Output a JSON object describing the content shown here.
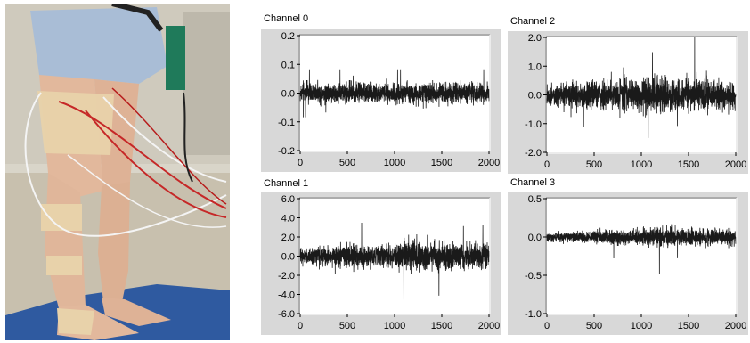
{
  "photo": {
    "subject": "legs instrumented with EMG electrodes and cables, standing on a blue mat",
    "colors": {
      "background": "#d8d4c8",
      "mat": "#2f5aa0",
      "skin": "#e2b89c",
      "bandage": "#e6cfa8",
      "shorts": "#a9bdd6"
    }
  },
  "chart_data": [
    {
      "type": "line",
      "title": "Channel 0",
      "xlim": [
        0,
        2000
      ],
      "ylim": [
        -0.2,
        0.2
      ],
      "xticks": [
        0,
        500,
        1000,
        1500,
        2000
      ],
      "yticks": [
        -0.2,
        -0.1,
        0.0,
        0.1,
        0.2
      ],
      "xtick_labels": [
        "0",
        "500",
        "1000",
        "1500",
        "2000"
      ],
      "ytick_labels": [
        "-0.2",
        "-0.1",
        "0.0",
        "0.1",
        "0.2"
      ],
      "grid": false,
      "signal": {
        "samples": 2000,
        "amplitude": 0.025,
        "envelope": [
          [
            0,
            0.9
          ],
          [
            500,
            1.0
          ],
          [
            1000,
            1.0
          ],
          [
            1500,
            1.05
          ],
          [
            2000,
            1.0
          ]
        ],
        "peak": 0.08
      }
    },
    {
      "type": "line",
      "title": "Channel 2",
      "xlim": [
        0,
        2000
      ],
      "ylim": [
        -2.0,
        2.0
      ],
      "xticks": [
        0,
        500,
        1000,
        1500,
        2000
      ],
      "yticks": [
        -2.0,
        -1.0,
        0.0,
        1.0,
        2.0
      ],
      "xtick_labels": [
        "0",
        "500",
        "1000",
        "1500",
        "2000"
      ],
      "ytick_labels": [
        "-2.0",
        "-1.0",
        "0.0",
        "1.0",
        "2.0"
      ],
      "grid": false,
      "signal": {
        "samples": 2000,
        "amplitude": 0.35,
        "envelope": [
          [
            0,
            0.7
          ],
          [
            500,
            0.9
          ],
          [
            1000,
            1.2
          ],
          [
            1200,
            1.3
          ],
          [
            1500,
            1.1
          ],
          [
            2000,
            1.0
          ]
        ],
        "peak": 2.0
      }
    },
    {
      "type": "line",
      "title": "Channel 1",
      "xlim": [
        0,
        2000
      ],
      "ylim": [
        -6.0,
        6.0
      ],
      "xticks": [
        0,
        500,
        1000,
        1500,
        2000
      ],
      "yticks": [
        -6.0,
        -4.0,
        -2.0,
        0.0,
        2.0,
        4.0,
        6.0
      ],
      "xtick_labels": [
        "0",
        "500",
        "1000",
        "1500",
        "2000"
      ],
      "ytick_labels": [
        "-6.0",
        "-4.0",
        "-2.0",
        "0.0",
        "2.0",
        "4.0",
        "6.0"
      ],
      "grid": false,
      "signal": {
        "samples": 2000,
        "amplitude": 0.9,
        "envelope": [
          [
            0,
            0.6
          ],
          [
            400,
            0.9
          ],
          [
            800,
            0.9
          ],
          [
            1200,
            1.3
          ],
          [
            1600,
            1.0
          ],
          [
            2000,
            1.0
          ]
        ],
        "peak": 5.2
      }
    },
    {
      "type": "line",
      "title": "Channel 3",
      "xlim": [
        0,
        2000
      ],
      "ylim": [
        -1.0,
        0.5
      ],
      "xticks": [
        0,
        500,
        1000,
        1500,
        2000
      ],
      "yticks": [
        -1.0,
        -0.5,
        0.0,
        0.5
      ],
      "xtick_labels": [
        "0",
        "500",
        "1000",
        "1500",
        "2000"
      ],
      "ytick_labels": [
        "-1.0",
        "-0.5",
        "0.0",
        "0.5"
      ],
      "grid": false,
      "signal": {
        "samples": 2000,
        "amplitude": 0.07,
        "envelope": [
          [
            0,
            0.5
          ],
          [
            500,
            0.8
          ],
          [
            1000,
            1.1
          ],
          [
            1200,
            1.3
          ],
          [
            1500,
            1.1
          ],
          [
            2000,
            1.0
          ]
        ],
        "peak": 0.48
      }
    }
  ],
  "style": {
    "panel_bg": "#d8d8d8",
    "plot_bg": "#ffffff",
    "trace": "#1a1a1a",
    "border_dark": "#808080",
    "border_light": "#ffffff"
  }
}
